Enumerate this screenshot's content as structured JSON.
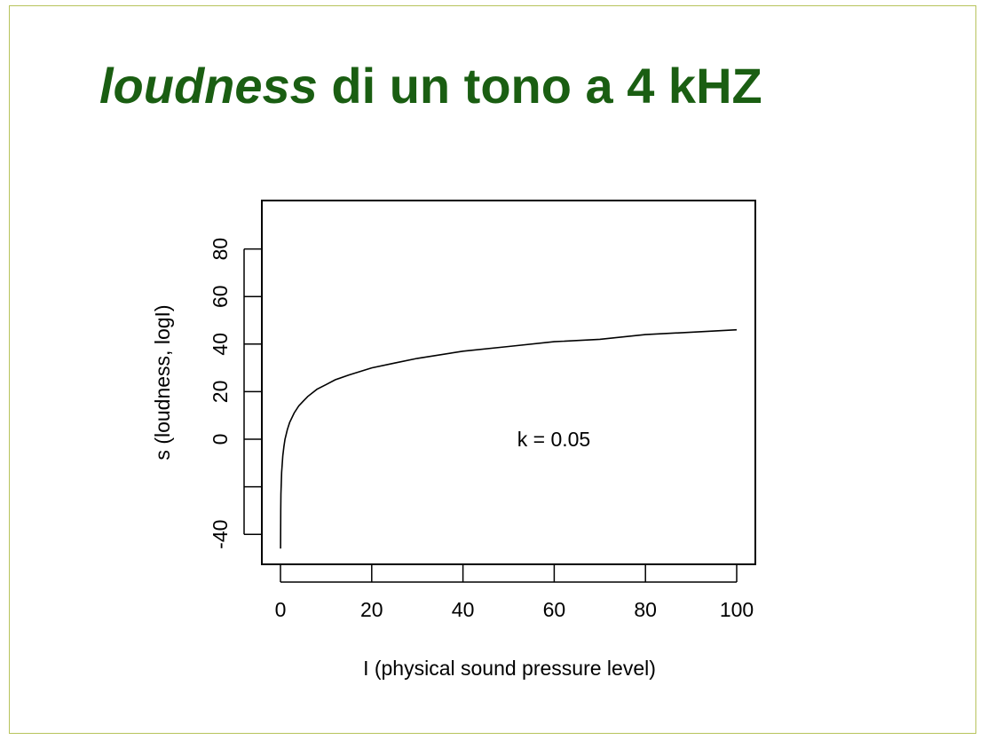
{
  "slide": {
    "title_italic": "loudness",
    "title_rest": " di un tono a 4 kHZ",
    "title_color": "#1a5e12",
    "frame_color": "#b7c35c"
  },
  "chart_data": {
    "type": "line",
    "title": "",
    "xlabel": "I (physical sound pressure level)",
    "ylabel": "s (loudness, logI)",
    "xlim": [
      0,
      100
    ],
    "ylim": [
      -40,
      90
    ],
    "x_ticks": [
      0,
      20,
      40,
      60,
      80,
      100
    ],
    "y_ticks": [
      -40,
      -20,
      0,
      20,
      40,
      60,
      80
    ],
    "y_tick_labels": [
      "-40",
      "",
      "0",
      "20",
      "40",
      "60",
      "80"
    ],
    "annotation": "k = 0.05",
    "grid": false,
    "series": [
      {
        "x": [
          0.01,
          0.05,
          0.1,
          0.25,
          0.5,
          0.75,
          1,
          1.5,
          2,
          3,
          4,
          5,
          6,
          8,
          10,
          12,
          15,
          20,
          25,
          30,
          40,
          50,
          60,
          70,
          80,
          90,
          100
        ],
        "y": [
          -46,
          -30,
          -23,
          -14,
          -7,
          -3,
          0,
          4,
          7,
          11,
          14,
          16,
          18,
          21,
          23,
          25,
          27,
          30,
          32,
          34,
          37,
          39,
          41,
          42,
          44,
          45,
          46
        ]
      }
    ]
  }
}
